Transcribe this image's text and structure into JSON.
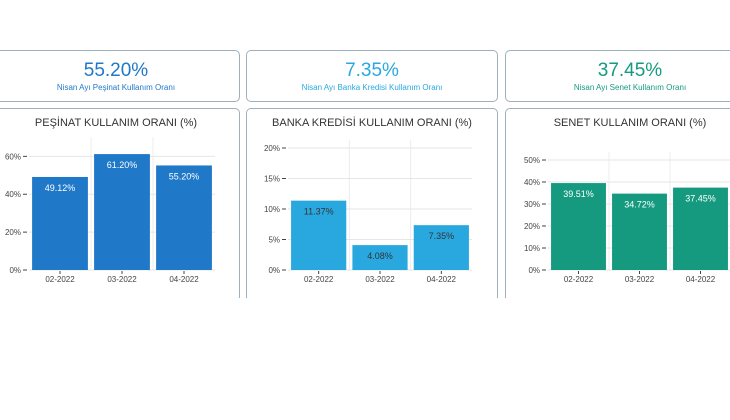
{
  "kpis": [
    {
      "value": "55.20%",
      "label": "Nisan Ayı Peşinat Kullanım Oranı",
      "color": "#1f78c8"
    },
    {
      "value": "7.35%",
      "label": "Nisan Ayı Banka Kredisi Kullanım Oranı",
      "color": "#29a8e0"
    },
    {
      "value": "37.45%",
      "label": "Nisan Ayı Senet Kullanım Oranı",
      "color": "#159a80"
    }
  ],
  "chart_data": [
    {
      "type": "bar",
      "title": "PEŞİNAT KULLANIM ORANI (%)",
      "categories": [
        "02-2022",
        "03-2022",
        "04-2022"
      ],
      "values": [
        49.12,
        61.2,
        55.2
      ],
      "value_labels": [
        "49.12%",
        "61.20%",
        "55.20%"
      ],
      "yticks": [
        0,
        20,
        40,
        60
      ],
      "ytick_labels": [
        "0%",
        "20%",
        "40%",
        "60%"
      ],
      "ylim": [
        0,
        66
      ],
      "bar_color": "#1f78c8",
      "label_color": "#ffffff",
      "grid": true
    },
    {
      "type": "bar",
      "title": "BANKA KREDİSİ KULLANIM ORANI (%)",
      "categories": [
        "02-2022",
        "03-2022",
        "04-2022"
      ],
      "values": [
        11.37,
        4.08,
        7.35
      ],
      "value_labels": [
        "11.37%",
        "4.08%",
        "7.35%"
      ],
      "yticks": [
        0,
        5,
        10,
        15,
        20
      ],
      "ytick_labels": [
        "0%",
        "5%",
        "10%",
        "15%",
        "20%"
      ],
      "ylim": [
        0,
        20
      ],
      "bar_color": "#29a8e0",
      "label_color": "#333333",
      "grid": true
    },
    {
      "type": "bar",
      "title": "SENET KULLANIM ORANI (%)",
      "categories": [
        "02-2022",
        "03-2022",
        "04-2022"
      ],
      "values": [
        39.51,
        34.72,
        37.45
      ],
      "value_labels": [
        "39.51%",
        "34.72%",
        "37.45%"
      ],
      "yticks": [
        0,
        10,
        20,
        30,
        40,
        50
      ],
      "ytick_labels": [
        "0%",
        "10%",
        "20%",
        "30%",
        "40%",
        "50%"
      ],
      "ylim": [
        0,
        50
      ],
      "bar_color": "#159a80",
      "label_color": "#ffffff",
      "grid": true
    }
  ]
}
